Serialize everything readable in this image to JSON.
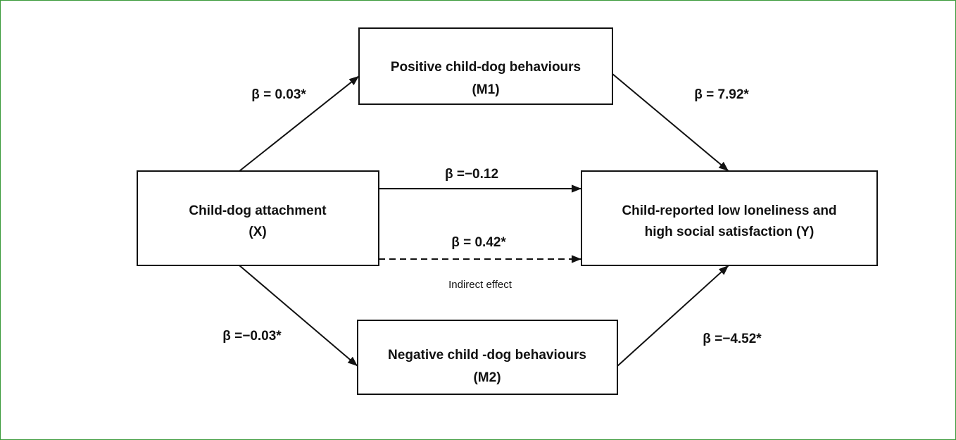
{
  "nodes": [
    {
      "lines": [
        "Positive child-dog behaviours",
        "(M1)"
      ]
    },
    {
      "lines": [
        "Child-dog attachment",
        "(X)"
      ]
    },
    {
      "lines": [
        "Child-reported low loneliness and",
        "high social satisfaction (Y)"
      ]
    },
    {
      "lines": [
        "Negative child -dog behaviours",
        "(M2)"
      ]
    }
  ],
  "edges": [
    {
      "label": "β = 0.03*"
    },
    {
      "label": "β = 7.92*"
    },
    {
      "label": "β =−0.12"
    },
    {
      "label": "β = 0.42*",
      "note": "Indirect effect"
    },
    {
      "label": "β =−0.03*"
    },
    {
      "label": "β =−4.52*"
    }
  ]
}
